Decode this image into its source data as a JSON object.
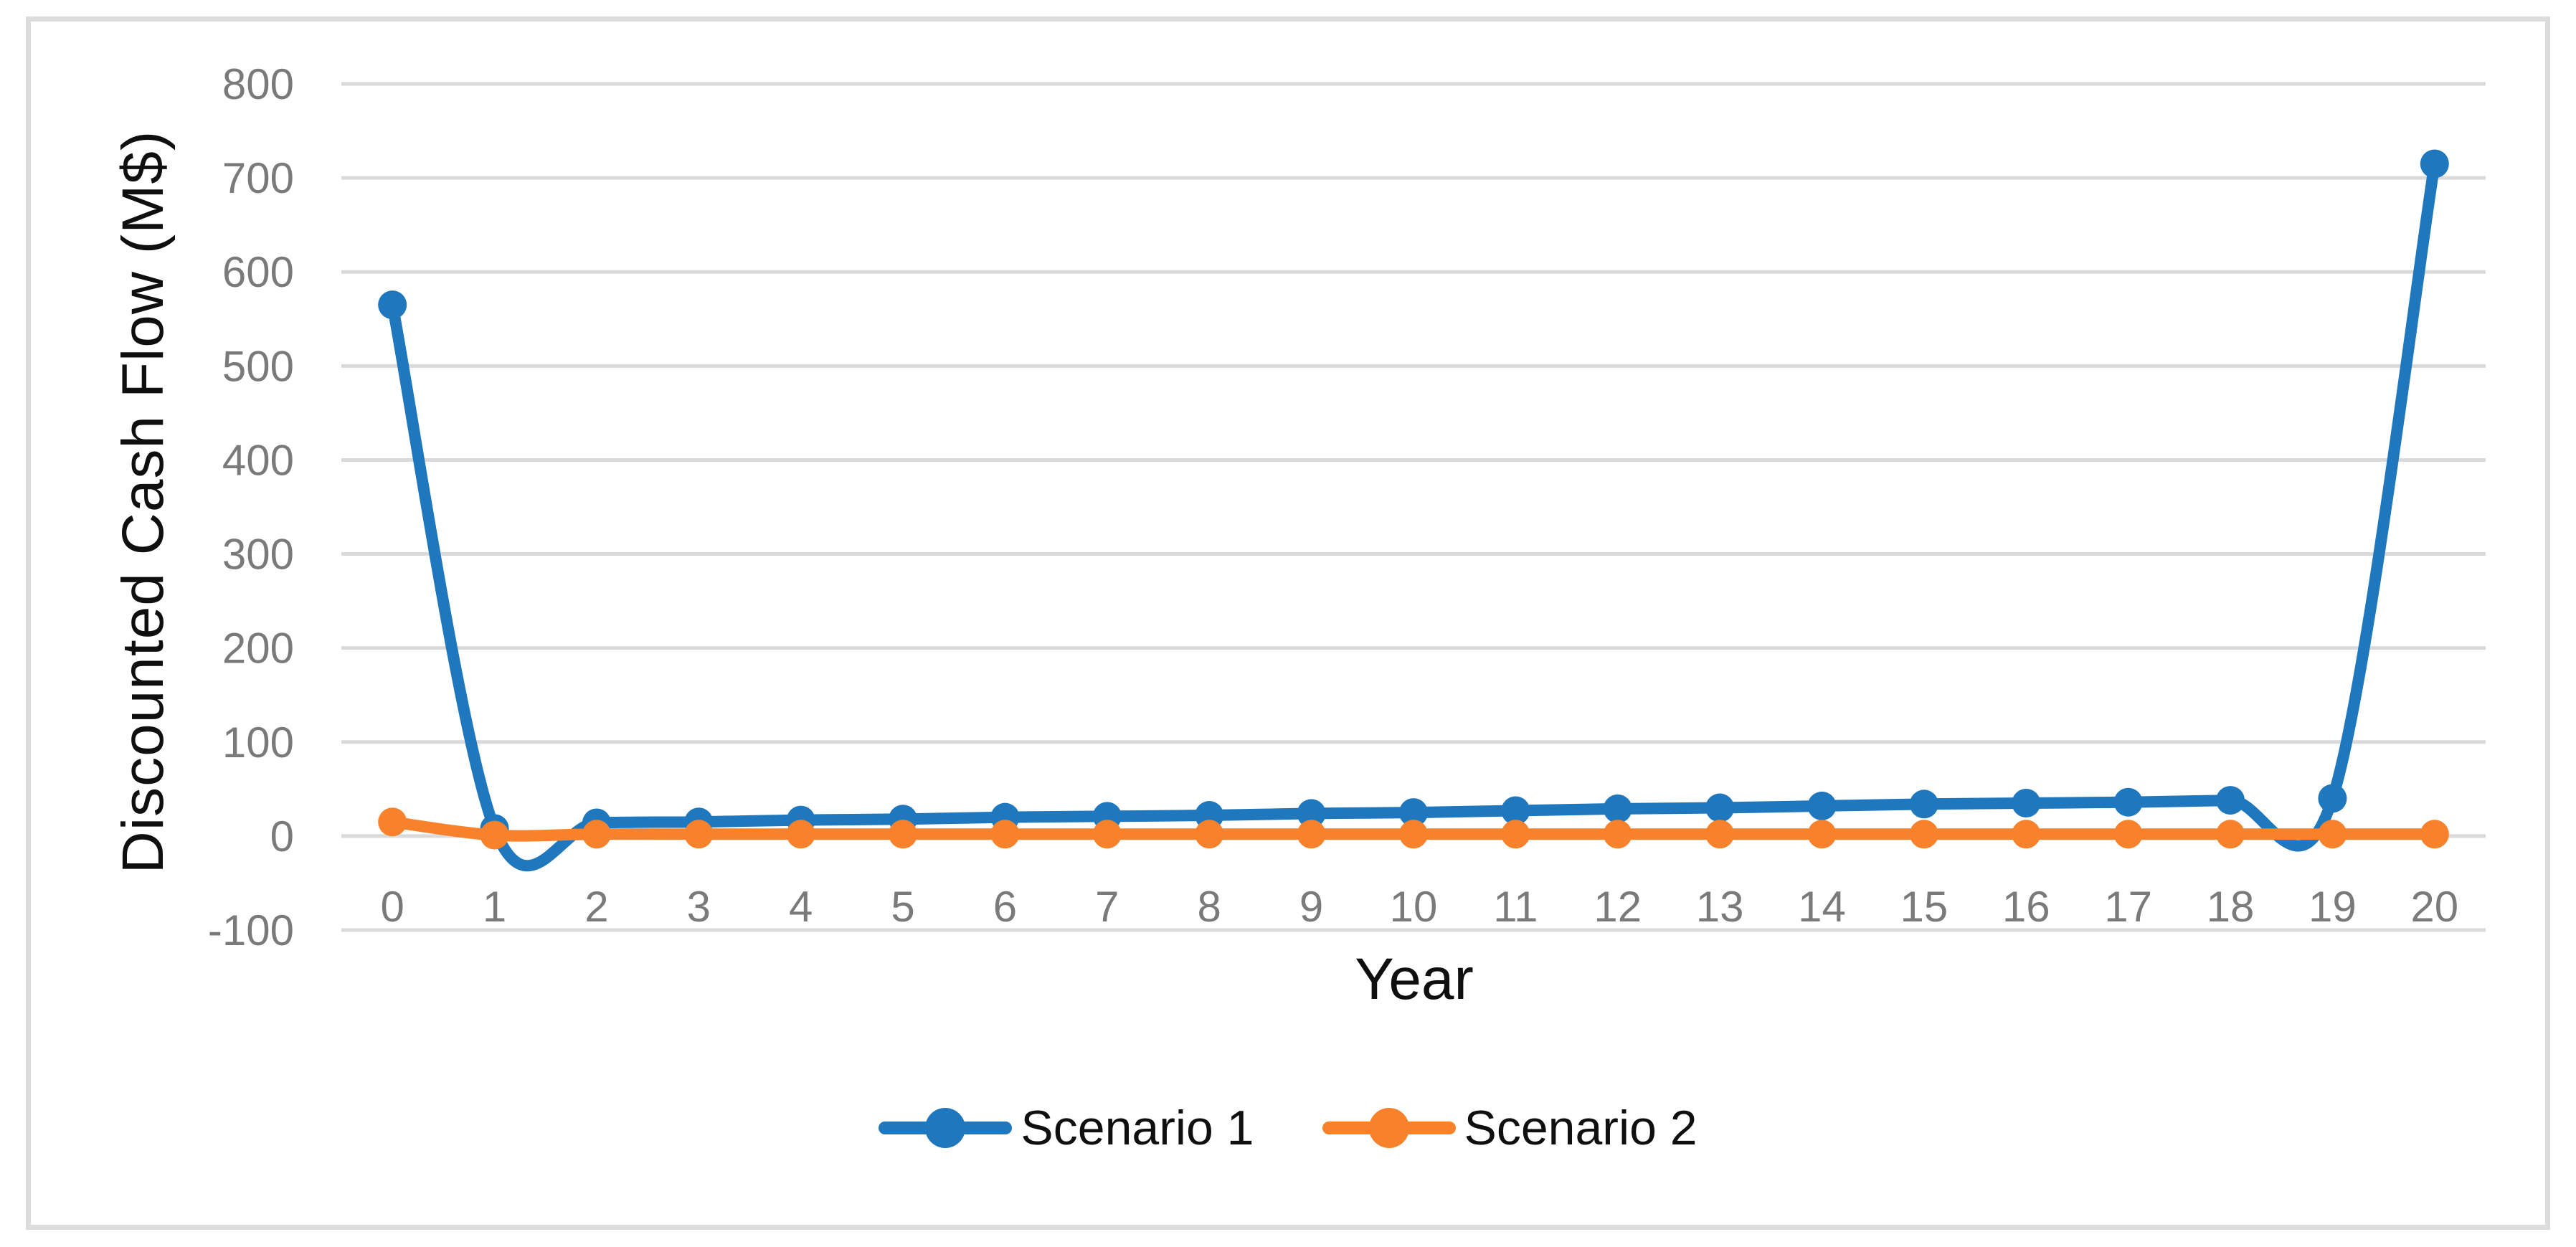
{
  "figure": {
    "border_color": "#dcdcdc",
    "background": "#ffffff"
  },
  "axes": {
    "y_title": "Discounted Cash Flow (M$)",
    "x_title": "Year",
    "tick_color": "#7a7a7a",
    "gridline_color": "#dadada",
    "title_color": "#0f0f0f"
  },
  "legend": {
    "items": [
      {
        "label": "Scenario 1",
        "color": "#1f78be"
      },
      {
        "label": "Scenario 2",
        "color": "#f8822b"
      }
    ]
  },
  "chart_data": {
    "type": "line",
    "title": "",
    "xlabel": "Year",
    "ylabel": "Discounted Cash Flow (M$)",
    "categories": [
      0,
      1,
      2,
      3,
      4,
      5,
      6,
      7,
      8,
      9,
      10,
      11,
      12,
      13,
      14,
      15,
      16,
      17,
      18,
      19,
      20
    ],
    "x_tick_labels": [
      "0",
      "1",
      "2",
      "3",
      "4",
      "5",
      "6",
      "7",
      "8",
      "9",
      "10",
      "11",
      "12",
      "13",
      "14",
      "15",
      "16",
      "17",
      "18",
      "19",
      "20"
    ],
    "y_tick_labels": [
      "800",
      "700",
      "600",
      "500",
      "400",
      "300",
      "200",
      "100",
      "0",
      "-100"
    ],
    "y_ticks": [
      800,
      700,
      600,
      500,
      400,
      300,
      200,
      100,
      0,
      -100
    ],
    "ylim": [
      -100,
      800
    ],
    "grid": true,
    "smooth": true,
    "marker": "circle",
    "legend_position": "bottom",
    "series": [
      {
        "name": "Scenario 1",
        "color": "#1f78be",
        "values": [
          565,
          8,
          14,
          15,
          17,
          18,
          20,
          21,
          22,
          24,
          25,
          27,
          29,
          30,
          32,
          34,
          35,
          36,
          38,
          40,
          715
        ]
      },
      {
        "name": "Scenario 2",
        "color": "#f8822b",
        "values": [
          15,
          1,
          2,
          2,
          2,
          2,
          2,
          2,
          2,
          2,
          2,
          2,
          2,
          2,
          2,
          2,
          2,
          2,
          2,
          2,
          2
        ]
      }
    ]
  }
}
